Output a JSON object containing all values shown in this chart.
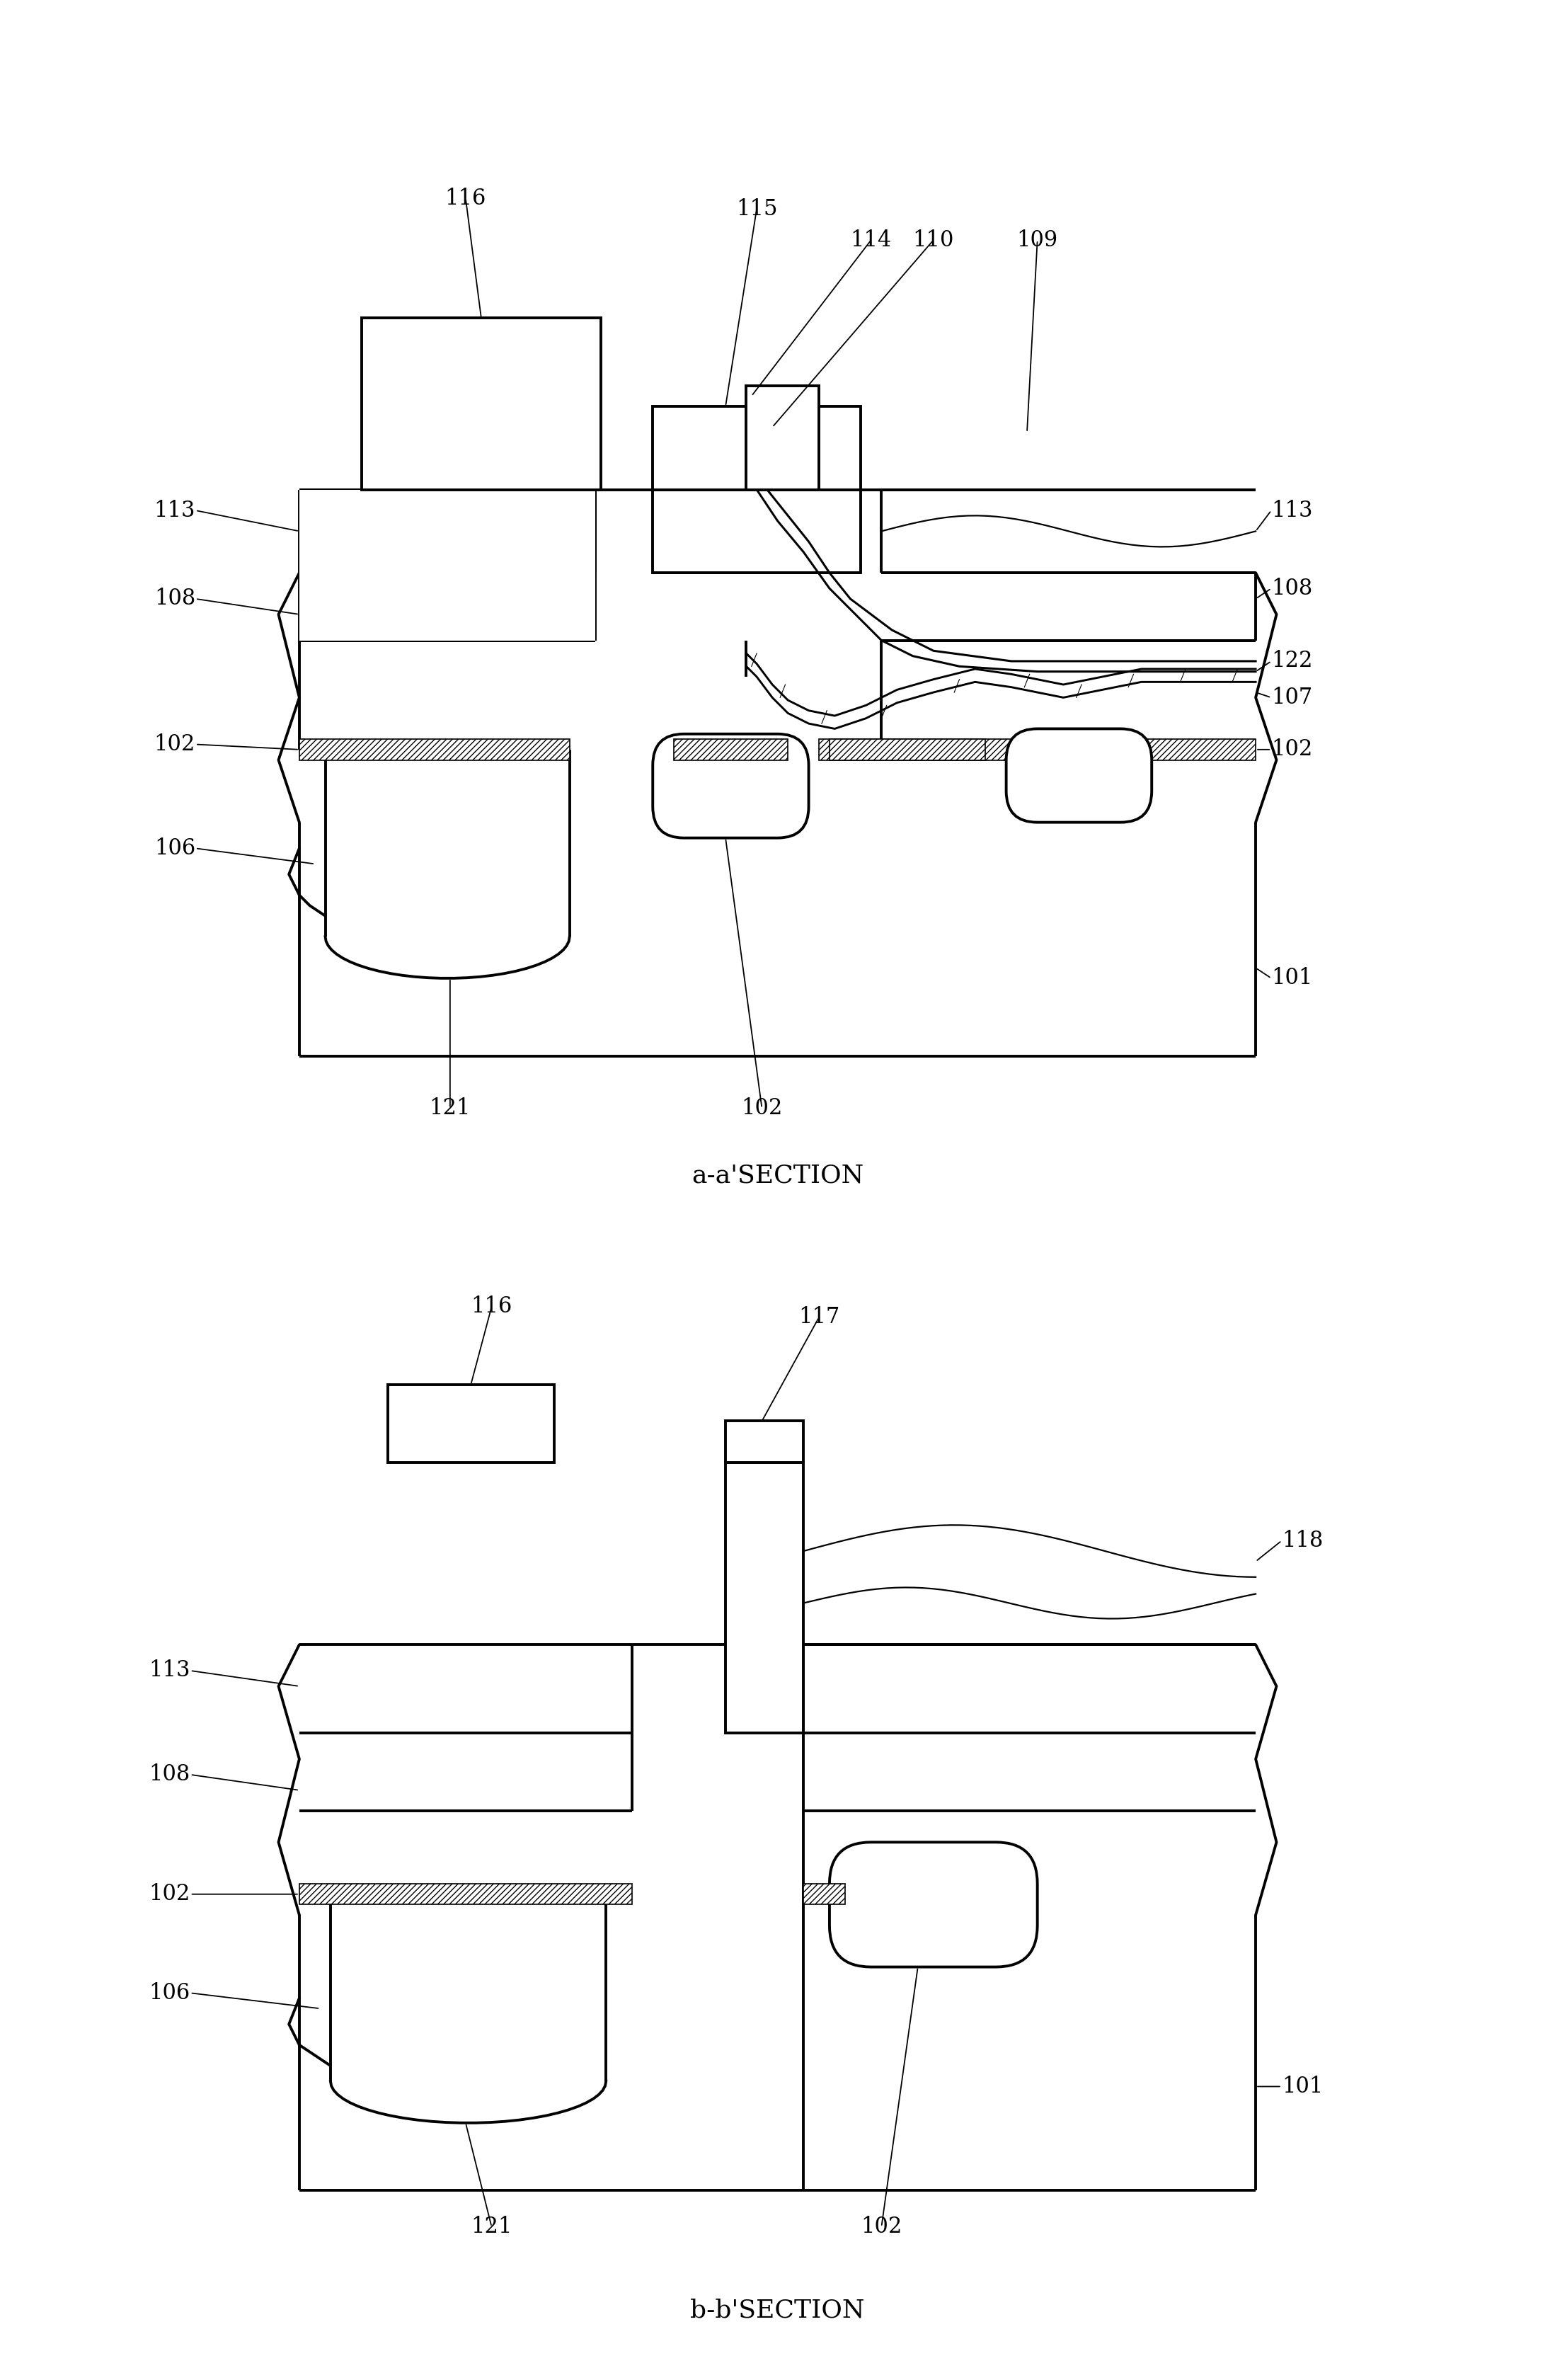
{
  "bg_color": "#ffffff",
  "lc": "#000000",
  "lw": 2.2,
  "lw_thin": 1.6,
  "lw_thick": 2.8,
  "fig_width": 21.97,
  "fig_height": 33.38,
  "fs": 22,
  "fs_title": 26,
  "section_a": "a-a'SECTION",
  "section_b": "b-b'SECTION"
}
